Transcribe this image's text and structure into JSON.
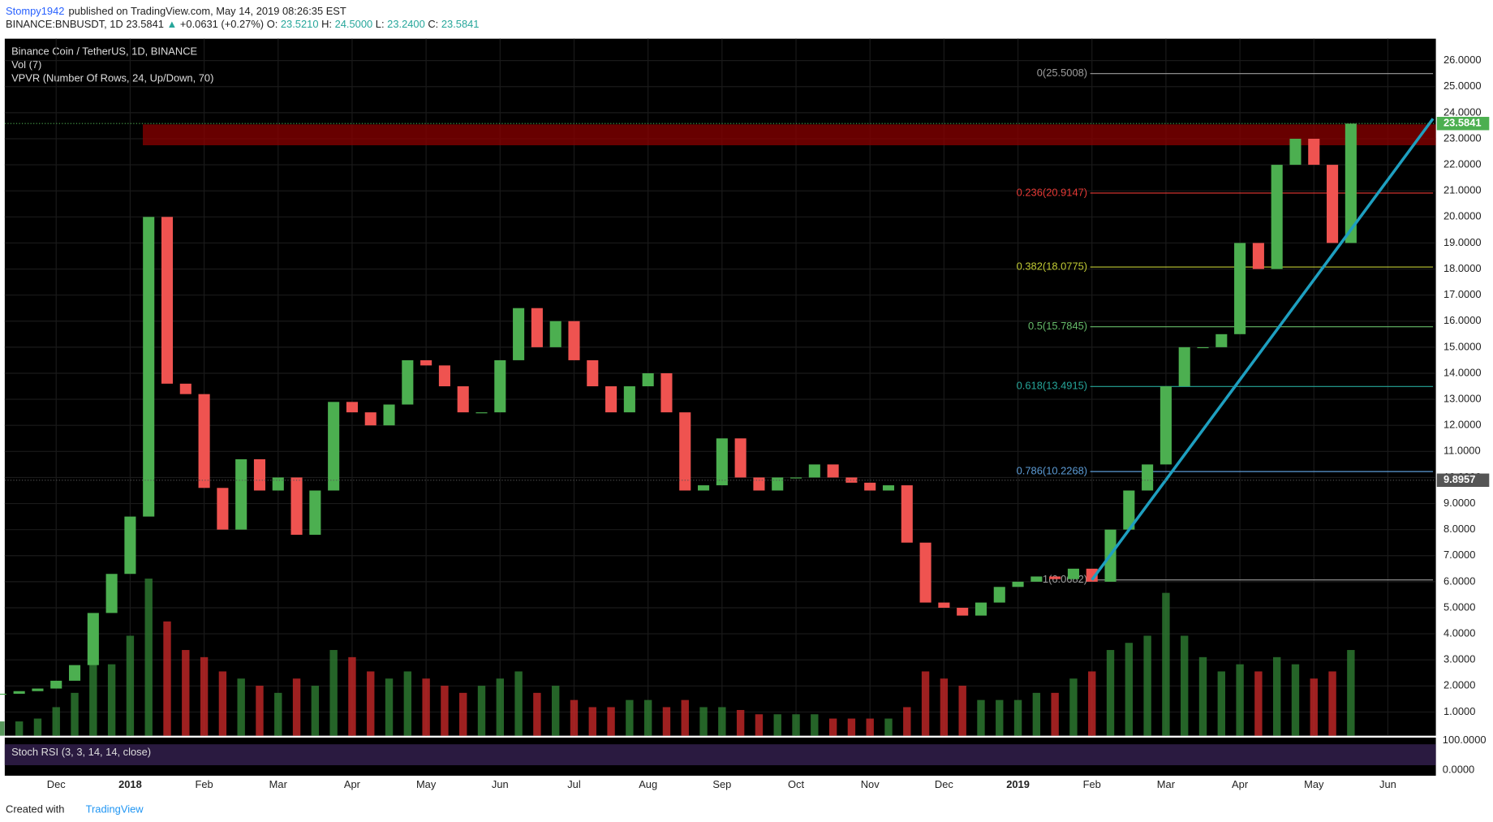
{
  "header": {
    "user": "Stompy1942",
    "published": "published on TradingView.com, May 14, 2019 08:26:35 EST",
    "symbol": "BINANCE:BNBUSDT, 1D",
    "last": "23.5841",
    "arrow": "▲",
    "change": "+0.0631 (+0.27%)",
    "ohlc": [
      {
        "k": "O:",
        "v": "23.5210"
      },
      {
        "k": "H:",
        "v": "24.5000"
      },
      {
        "k": "L:",
        "v": "23.2400"
      },
      {
        "k": "C:",
        "v": "23.5841"
      }
    ]
  },
  "chart": {
    "legend": [
      "Binance Coin / TetherUS, 1D, BINANCE",
      "Vol (7)",
      "VPVR (Number Of Rows, 24, Up/Down, 70)"
    ],
    "ylim": [
      0.09,
      26.84
    ],
    "yticks": [
      {
        "value": 1,
        "label": "1.0000"
      },
      {
        "value": 2,
        "label": "2.0000"
      },
      {
        "value": 3,
        "label": "3.0000"
      },
      {
        "value": 4,
        "label": "4.0000"
      },
      {
        "value": 5,
        "label": "5.0000"
      },
      {
        "value": 6,
        "label": "6.0000"
      },
      {
        "value": 7,
        "label": "7.0000"
      },
      {
        "value": 8,
        "label": "8.0000"
      },
      {
        "value": 9,
        "label": "9.0000"
      },
      {
        "value": 10,
        "label": "10.0000"
      },
      {
        "value": 11,
        "label": "11.0000"
      },
      {
        "value": 12,
        "label": "12.0000"
      },
      {
        "value": 13,
        "label": "13.0000"
      },
      {
        "value": 14,
        "label": "14.0000"
      },
      {
        "value": 15,
        "label": "15.0000"
      },
      {
        "value": 16,
        "label": "16.0000"
      },
      {
        "value": 17,
        "label": "17.0000"
      },
      {
        "value": 18,
        "label": "18.0000"
      },
      {
        "value": 19,
        "label": "19.0000"
      },
      {
        "value": 20,
        "label": "20.0000"
      },
      {
        "value": 21,
        "label": "21.0000"
      },
      {
        "value": 22,
        "label": "22.0000"
      },
      {
        "value": 23,
        "label": "23.0000"
      },
      {
        "value": 24,
        "label": "24.0000"
      },
      {
        "value": 25,
        "label": "25.0000"
      },
      {
        "value": 26,
        "label": "26.0000"
      }
    ],
    "months": [
      "Dec",
      "2018",
      "Feb",
      "Mar",
      "Apr",
      "May",
      "Jun",
      "Jul",
      "Aug",
      "Sep",
      "Oct",
      "Nov",
      "Dec",
      "2019",
      "Feb",
      "Mar",
      "Apr",
      "May",
      "Jun"
    ],
    "closes": [
      1.7,
      1.8,
      1.9,
      2.2,
      2.8,
      4.8,
      6.3,
      8.5,
      20,
      13.6,
      13.2,
      9.6,
      8,
      10.7,
      9.5,
      10,
      7.8,
      9.5,
      12.9,
      12.5,
      12,
      12.8,
      14.5,
      14.3,
      13.5,
      12.5,
      12.5,
      14.5,
      16.5,
      15,
      16,
      14.5,
      13.5,
      12.5,
      13.5,
      14,
      12.5,
      9.5,
      9.7,
      11.5,
      10,
      9.5,
      10,
      10,
      10.5,
      10,
      9.8,
      9.5,
      9.7,
      7.5,
      5.2,
      5,
      4.7,
      5.2,
      5.8,
      6,
      6.2,
      6.1,
      6.5,
      6,
      8,
      9.5,
      10.5,
      13.5,
      15,
      15,
      15.5,
      19,
      18,
      22,
      23,
      22,
      19,
      23.58
    ],
    "volume_lim": [
      0,
      120
    ],
    "volumes": [
      10,
      10,
      12,
      20,
      30,
      60,
      50,
      70,
      110,
      80,
      60,
      55,
      45,
      40,
      35,
      30,
      40,
      35,
      60,
      55,
      45,
      40,
      45,
      40,
      35,
      30,
      35,
      40,
      45,
      30,
      35,
      25,
      20,
      20,
      25,
      25,
      20,
      25,
      20,
      20,
      18,
      15,
      15,
      15,
      15,
      12,
      12,
      12,
      12,
      20,
      45,
      40,
      35,
      25,
      25,
      25,
      30,
      30,
      40,
      45,
      60,
      65,
      70,
      100,
      70,
      55,
      45,
      50,
      45,
      55,
      50,
      40,
      45,
      60
    ],
    "price_tags": [
      {
        "label": "23.5841",
        "value": 23.5841,
        "color": "#4caf50"
      },
      {
        "label": "9.8957",
        "value": 9.8957,
        "color": "#555"
      }
    ],
    "fib_levels": [
      {
        "label": "0(25.5008)",
        "value": 25.5008,
        "color": "#9e9e9e"
      },
      {
        "label": "0.236(20.9147)",
        "value": 20.9147,
        "color": "#e53935"
      },
      {
        "label": "0.382(18.0775)",
        "value": 18.0775,
        "color": "#c0ca33"
      },
      {
        "label": "0.5(15.7845)",
        "value": 15.7845,
        "color": "#66bb6a"
      },
      {
        "label": "0.618(13.4915)",
        "value": 13.4915,
        "color": "#26a69a"
      },
      {
        "label": "0.786(10.2268)",
        "value": 10.2268,
        "color": "#5c9bd5"
      },
      {
        "label": "1(6.0682)",
        "value": 6.0682,
        "color": "#9e9e9e"
      }
    ],
    "resistance_zone": [
      22.75,
      23.55
    ],
    "trendline": [
      6.07,
      23.77
    ],
    "stoch": {
      "label": "Stoch RSI (3, 3, 14, 14, close)",
      "ticks": [
        "100.0000",
        "0.0000"
      ]
    }
  },
  "footer": {
    "created": "Created with",
    "brand": "TradingView"
  }
}
